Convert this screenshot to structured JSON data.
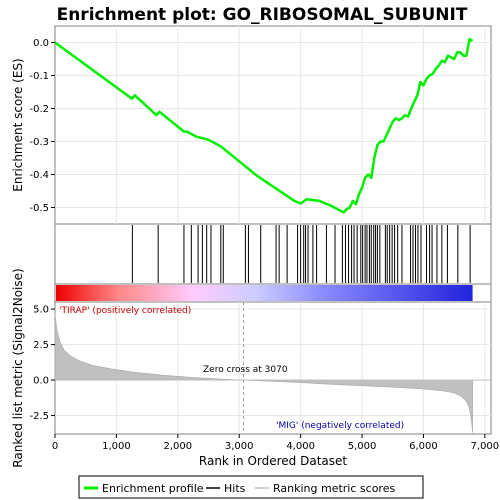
{
  "chart_data": {
    "type": "line",
    "title": "Enrichment plot: GO_RIBOSOMAL_SUBUNIT",
    "xlabel": "Rank in Ordered Dataset",
    "x_ticks": [
      "0",
      "1,000",
      "2,000",
      "3,000",
      "4,000",
      "5,000",
      "6,000",
      "7,000"
    ],
    "xlim": [
      0,
      7100
    ],
    "top_panel": {
      "ylabel": "Enrichment score (ES)",
      "ylim": [
        -0.55,
        0.05
      ],
      "y_ticks": [
        "0.0",
        "-0.1",
        "-0.2",
        "-0.3",
        "-0.4",
        "-0.5"
      ],
      "series_color": "#00ee00",
      "es_curve": {
        "x": [
          0,
          1250,
          1300,
          1650,
          1700,
          2100,
          2150,
          2300,
          2500,
          2700,
          3000,
          3300,
          3500,
          3700,
          3900,
          4000,
          4100,
          4300,
          4500,
          4650,
          4700,
          4750,
          4800,
          4850,
          4900,
          4950,
          5000,
          5050,
          5100,
          5150,
          5200,
          5250,
          5300,
          5350,
          5400,
          5450,
          5500,
          5550,
          5600,
          5650,
          5700,
          5750,
          5800,
          5850,
          5900,
          5950,
          6000,
          6050,
          6100,
          6150,
          6200,
          6250,
          6300,
          6350,
          6400,
          6450,
          6500,
          6550,
          6600,
          6650,
          6700,
          6750,
          6800
        ],
        "y": [
          0.0,
          -0.17,
          -0.16,
          -0.22,
          -0.21,
          -0.27,
          -0.27,
          -0.285,
          -0.295,
          -0.315,
          -0.36,
          -0.405,
          -0.43,
          -0.455,
          -0.48,
          -0.488,
          -0.475,
          -0.48,
          -0.495,
          -0.51,
          -0.515,
          -0.505,
          -0.5,
          -0.48,
          -0.49,
          -0.46,
          -0.44,
          -0.41,
          -0.4,
          -0.41,
          -0.35,
          -0.31,
          -0.3,
          -0.3,
          -0.28,
          -0.26,
          -0.24,
          -0.23,
          -0.235,
          -0.23,
          -0.22,
          -0.225,
          -0.2,
          -0.18,
          -0.16,
          -0.12,
          -0.13,
          -0.11,
          -0.1,
          -0.095,
          -0.08,
          -0.07,
          -0.055,
          -0.06,
          -0.04,
          -0.045,
          -0.05,
          -0.03,
          -0.03,
          -0.04,
          -0.04,
          0.01,
          0.005
        ]
      }
    },
    "hits_panel": {
      "hit_color": "#000000",
      "hits": [
        1260,
        1680,
        2100,
        2220,
        2330,
        2400,
        2470,
        2540,
        2700,
        2740,
        3100,
        3150,
        3350,
        3600,
        3650,
        3780,
        3950,
        4000,
        4050,
        4080,
        4120,
        4200,
        4260,
        4420,
        4560,
        4680,
        4730,
        4780,
        4830,
        4870,
        4920,
        4980,
        5010,
        5050,
        5080,
        5120,
        5150,
        5190,
        5220,
        5250,
        5290,
        5380,
        5410,
        5450,
        5490,
        5530,
        5580,
        5650,
        5790,
        5830,
        5870,
        5910,
        5960,
        6050,
        6100,
        6140,
        6220,
        6300,
        6390,
        6560,
        6760
      ]
    },
    "gradient_bar": {
      "stops": [
        "#ee0000",
        "#ff8888",
        "#ffccff",
        "#ccccff",
        "#8888ff",
        "#2222dd"
      ]
    },
    "metric_panel": {
      "ylabel": "Ranked list metric (Signal2Noise)",
      "ylim": [
        -3.8,
        5.5
      ],
      "y_ticks": [
        "5.0",
        "2.5",
        "0.0",
        "-2.5"
      ],
      "fill_color": "#c0c0c0",
      "metric_curve": {
        "x": [
          0,
          30,
          80,
          150,
          250,
          400,
          600,
          900,
          1300,
          1800,
          2300,
          2800,
          3070,
          3500,
          4000,
          4500,
          5000,
          5500,
          6000,
          6300,
          6500,
          6620,
          6700,
          6750,
          6780,
          6800
        ],
        "y": [
          4.7,
          3.6,
          2.7,
          2.1,
          1.7,
          1.35,
          1.05,
          0.8,
          0.55,
          0.33,
          0.17,
          0.05,
          0.0,
          -0.08,
          -0.18,
          -0.3,
          -0.4,
          -0.5,
          -0.62,
          -0.75,
          -0.9,
          -1.15,
          -1.5,
          -2.0,
          -2.8,
          -3.7
        ]
      },
      "zero_cross_label": "Zero cross at 3070",
      "zero_cross_x": 3070,
      "pos_label": "'TIRAP' (positively correlated)",
      "pos_color": "#cc0000",
      "neg_label": "'MIG' (negatively correlated)",
      "neg_color": "#0000aa"
    },
    "legend": [
      {
        "label": "Enrichment profile",
        "color": "#00ee00"
      },
      {
        "label": "Hits",
        "color": "#000000"
      },
      {
        "label": "Ranking metric scores",
        "color": "#c0c0c0"
      }
    ]
  }
}
